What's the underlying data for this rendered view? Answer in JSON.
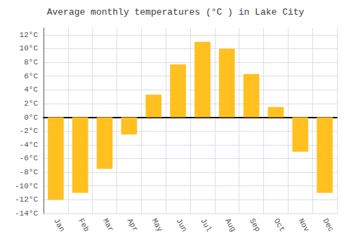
{
  "chart_data": {
    "type": "bar",
    "title": "Average monthly temperatures (°C ) in Lake City",
    "categories": [
      "Jan",
      "Feb",
      "Mar",
      "Apr",
      "May",
      "Jun",
      "Jul",
      "Aug",
      "Sep",
      "Oct",
      "Nov",
      "Dec"
    ],
    "values": [
      -12.0,
      -11.0,
      -7.5,
      -2.5,
      3.3,
      7.7,
      11.0,
      10.0,
      6.3,
      1.5,
      -5.0,
      -11.0
    ],
    "color": "#FFC020",
    "ylim": [
      -14,
      13
    ],
    "yticks": [
      {
        "value": -14,
        "label": "-14°C"
      },
      {
        "value": -12,
        "label": "-12°C"
      },
      {
        "value": -10,
        "label": "-10°C"
      },
      {
        "value": -8,
        "label": "-8°C"
      },
      {
        "value": -6,
        "label": "-6°C"
      },
      {
        "value": -4,
        "label": "-4°C"
      },
      {
        "value": -2,
        "label": "-2°C"
      },
      {
        "value": 0,
        "label": "0°C"
      },
      {
        "value": 2,
        "label": "2°C"
      },
      {
        "value": 4,
        "label": "4°C"
      },
      {
        "value": 6,
        "label": "6°C"
      },
      {
        "value": 8,
        "label": "8°C"
      },
      {
        "value": 10,
        "label": "10°C"
      },
      {
        "value": 12,
        "label": "12°C"
      }
    ],
    "grid": true
  }
}
